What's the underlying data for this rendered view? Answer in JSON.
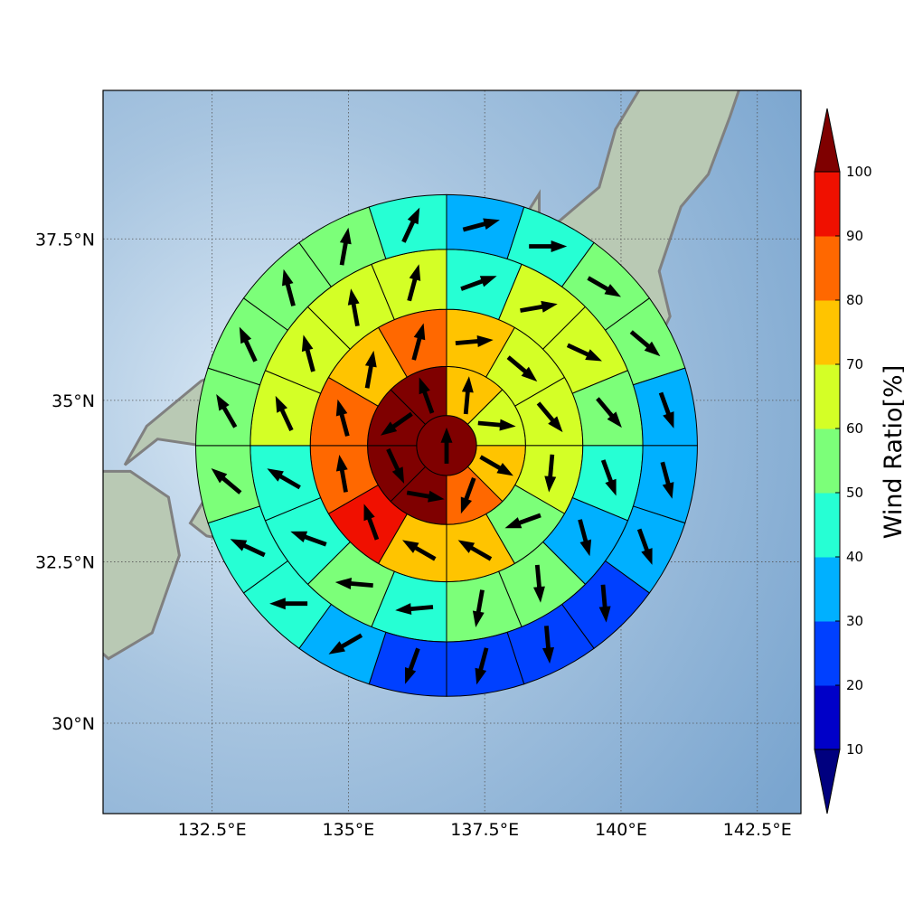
{
  "map": {
    "lon_range": [
      130.5,
      143.3
    ],
    "lat_range": [
      28.6,
      39.8
    ],
    "x_ticks": [
      {
        "value": 132.5,
        "label": "132.5°E"
      },
      {
        "value": 135,
        "label": "135°E"
      },
      {
        "value": 137.5,
        "label": "137.5°E"
      },
      {
        "value": 140,
        "label": "140°E"
      },
      {
        "value": 142.5,
        "label": "142.5°E"
      }
    ],
    "y_ticks": [
      {
        "value": 37.5,
        "label": "37.5°N"
      },
      {
        "value": 35,
        "label": "35°N"
      },
      {
        "value": 32.5,
        "label": "32.5°N"
      },
      {
        "value": 30,
        "label": "30°N"
      }
    ],
    "grid": "dotted",
    "background": "shaded-relief",
    "ocean_color": "#8fb4d6",
    "land_color": "#b9c9b4",
    "coast_color": "#808080"
  },
  "chart_data": {
    "type": "polar-sector-grid",
    "center": {
      "lon": 136.8,
      "lat": 34.3
    },
    "ring_radii_deg": [
      0.55,
      1.45,
      2.5,
      3.6,
      4.6
    ],
    "sectors_per_ring": [
      1,
      8,
      12,
      16,
      20
    ],
    "direction_origin": "north, clockwise",
    "rings": [
      {
        "ring": 1,
        "ratios": [
          100
        ],
        "arrows_deg": [
          0
        ]
      },
      {
        "ring": 2,
        "ratios": [
          75,
          65,
          75,
          85,
          100,
          100,
          100,
          100
        ],
        "arrows_deg": [
          5,
          95,
          120,
          200,
          100,
          155,
          235,
          340
        ]
      },
      {
        "ring": 3,
        "ratios": [
          75,
          65,
          65,
          65,
          55,
          75,
          75,
          95,
          85,
          85,
          75,
          85
        ],
        "arrows_deg": [
          85,
          130,
          140,
          185,
          250,
          300,
          300,
          340,
          350,
          345,
          10,
          15
        ]
      },
      {
        "ring": 4,
        "ratios": [
          45,
          65,
          65,
          55,
          45,
          35,
          55,
          55,
          45,
          55,
          45,
          45,
          65,
          65,
          65,
          65
        ],
        "arrows_deg": [
          70,
          80,
          115,
          140,
          160,
          165,
          175,
          190,
          265,
          275,
          290,
          300,
          335,
          345,
          350,
          15
        ]
      },
      {
        "ring": 5,
        "ratios": [
          35,
          45,
          55,
          55,
          35,
          35,
          35,
          25,
          25,
          25,
          25,
          35,
          45,
          45,
          55,
          55,
          55,
          55,
          55,
          45
        ],
        "arrows_deg": [
          75,
          90,
          120,
          130,
          160,
          165,
          160,
          175,
          175,
          195,
          200,
          240,
          270,
          295,
          310,
          330,
          335,
          345,
          10,
          25
        ]
      }
    ],
    "colorbar": {
      "label": "Wind Ratio[%]",
      "ticks": [
        10,
        20,
        30,
        40,
        50,
        60,
        70,
        80,
        90,
        100
      ],
      "colors": [
        "#0000c8",
        "#0040ff",
        "#00b0ff",
        "#26ffd4",
        "#7cff79",
        "#d4ff26",
        "#ffc400",
        "#ff6800",
        "#f01000"
      ],
      "under_color": "#00007f",
      "over_color": "#7f0000",
      "extend": "both"
    }
  }
}
